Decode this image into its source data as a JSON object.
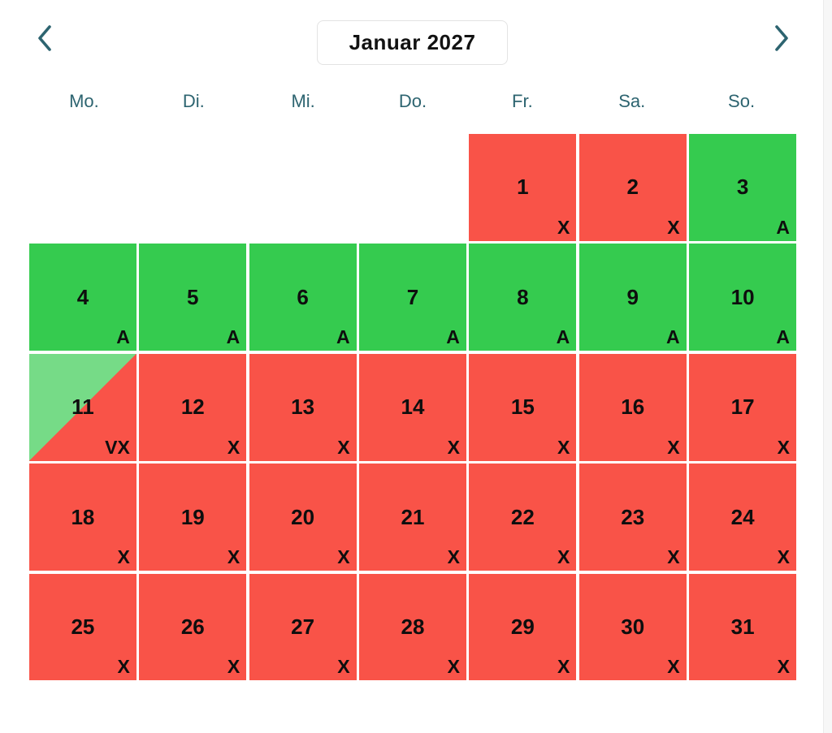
{
  "calendar": {
    "title": "Januar 2027",
    "weekdays": [
      "Mo.",
      "Di.",
      "Mi.",
      "Do.",
      "Fr.",
      "Sa.",
      "So."
    ],
    "leading_empty_cells": 4,
    "icons": {
      "prev": "chevron-left",
      "next": "chevron-right"
    },
    "colors": {
      "available": "#35cb4f",
      "blocked": "#f95348",
      "partial": "#76db87",
      "header_text": "#2d6470"
    },
    "days": [
      {
        "day": 1,
        "status": "blocked",
        "marker": "X"
      },
      {
        "day": 2,
        "status": "blocked",
        "marker": "X"
      },
      {
        "day": 3,
        "status": "available",
        "marker": "A"
      },
      {
        "day": 4,
        "status": "available",
        "marker": "A"
      },
      {
        "day": 5,
        "status": "available",
        "marker": "A"
      },
      {
        "day": 6,
        "status": "available",
        "marker": "A"
      },
      {
        "day": 7,
        "status": "available",
        "marker": "A"
      },
      {
        "day": 8,
        "status": "available",
        "marker": "A"
      },
      {
        "day": 9,
        "status": "available",
        "marker": "A"
      },
      {
        "day": 10,
        "status": "available",
        "marker": "A"
      },
      {
        "day": 11,
        "status": "partial",
        "marker": "VX"
      },
      {
        "day": 12,
        "status": "blocked",
        "marker": "X"
      },
      {
        "day": 13,
        "status": "blocked",
        "marker": "X"
      },
      {
        "day": 14,
        "status": "blocked",
        "marker": "X"
      },
      {
        "day": 15,
        "status": "blocked",
        "marker": "X"
      },
      {
        "day": 16,
        "status": "blocked",
        "marker": "X"
      },
      {
        "day": 17,
        "status": "blocked",
        "marker": "X"
      },
      {
        "day": 18,
        "status": "blocked",
        "marker": "X"
      },
      {
        "day": 19,
        "status": "blocked",
        "marker": "X"
      },
      {
        "day": 20,
        "status": "blocked",
        "marker": "X"
      },
      {
        "day": 21,
        "status": "blocked",
        "marker": "X"
      },
      {
        "day": 22,
        "status": "blocked",
        "marker": "X"
      },
      {
        "day": 23,
        "status": "blocked",
        "marker": "X"
      },
      {
        "day": 24,
        "status": "blocked",
        "marker": "X"
      },
      {
        "day": 25,
        "status": "blocked",
        "marker": "X"
      },
      {
        "day": 26,
        "status": "blocked",
        "marker": "X"
      },
      {
        "day": 27,
        "status": "blocked",
        "marker": "X"
      },
      {
        "day": 28,
        "status": "blocked",
        "marker": "X"
      },
      {
        "day": 29,
        "status": "blocked",
        "marker": "X"
      },
      {
        "day": 30,
        "status": "blocked",
        "marker": "X"
      },
      {
        "day": 31,
        "status": "blocked",
        "marker": "X"
      }
    ]
  }
}
